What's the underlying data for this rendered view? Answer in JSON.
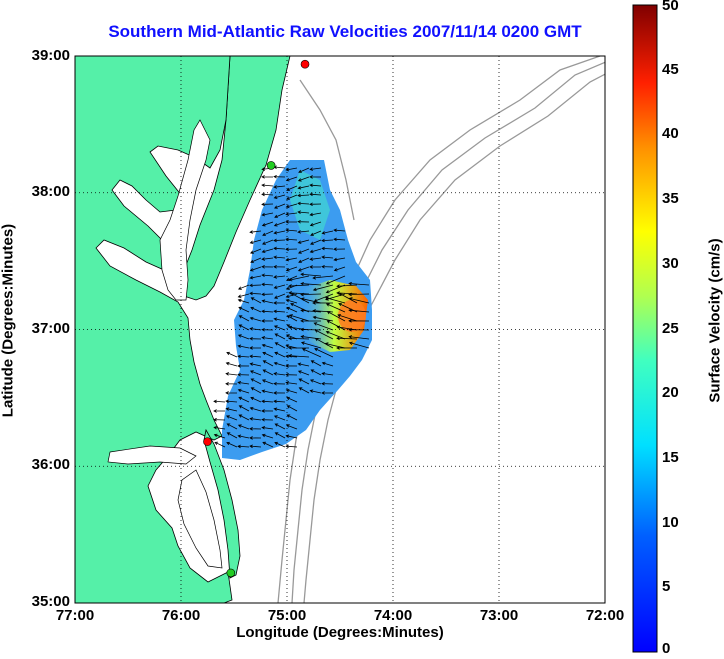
{
  "title": "Southern Mid-Atlantic Raw Velocities 2007/11/14 0200 GMT",
  "xlabel": "Longitude (Degrees:Minutes)",
  "ylabel": "Latitude (Degrees:Minutes)",
  "colorbar": {
    "label": "Surface Velocity (cm/s)",
    "range": [
      0,
      50
    ],
    "ticks": [
      "0",
      "5",
      "10",
      "15",
      "20",
      "25",
      "30",
      "35",
      "40",
      "45",
      "50"
    ],
    "colormap": "jet"
  },
  "map": {
    "lon_range": [
      -77,
      -72
    ],
    "lat_range": [
      35,
      39
    ],
    "xticks": [
      {
        "value": -77,
        "label": "77:00"
      },
      {
        "value": -76,
        "label": "76:00"
      },
      {
        "value": -75,
        "label": "75:00"
      },
      {
        "value": -74,
        "label": "74:00"
      },
      {
        "value": -73,
        "label": "73:00"
      },
      {
        "value": -72,
        "label": "72:00"
      }
    ],
    "yticks": [
      {
        "value": 39,
        "label": "39:00"
      },
      {
        "value": 38,
        "label": "38:00"
      },
      {
        "value": 37,
        "label": "37:00"
      },
      {
        "value": 36,
        "label": "36:00"
      },
      {
        "value": 35,
        "label": "35:00"
      }
    ],
    "grid": "dotted",
    "land_color": "#55f0a8",
    "contour_color": "#999999",
    "stations": [
      {
        "lon": -74.83,
        "lat": 38.94,
        "color": "#ff0000"
      },
      {
        "lon": -75.15,
        "lat": 38.2,
        "color": "#22cc22"
      },
      {
        "lon": -75.75,
        "lat": 36.18,
        "color": "#ff0000"
      },
      {
        "lon": -75.53,
        "lat": 35.22,
        "color": "#22cc22"
      }
    ]
  }
}
